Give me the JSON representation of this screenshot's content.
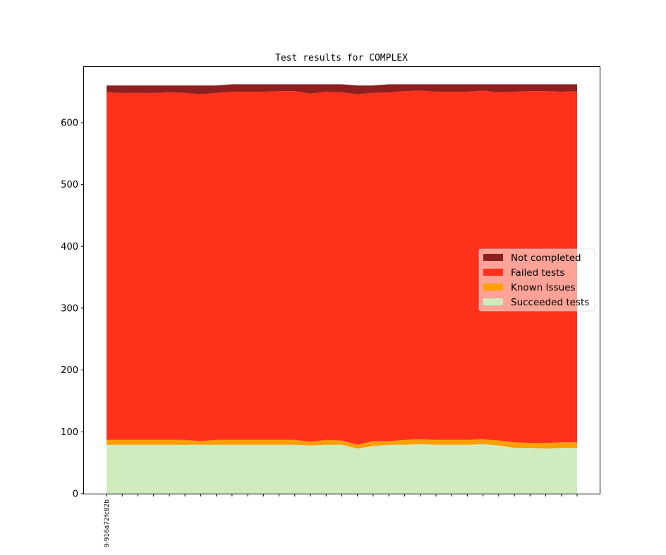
{
  "chart_data": {
    "type": "area",
    "stacked": true,
    "title": "Test results for COMPLEX",
    "xlabel": "",
    "ylabel": "",
    "ylim": [
      0,
      690
    ],
    "yticks": [
      0,
      100,
      200,
      300,
      400,
      500,
      600
    ],
    "x_tick_labels": [
      "9-916a72fc82b"
    ],
    "n_points": 31,
    "grid": false,
    "legend_position": "center-right",
    "series": [
      {
        "name": "Succeeded tests",
        "color": "#d0ecbf",
        "values": [
          79,
          79,
          79,
          79,
          79,
          79,
          79,
          79,
          79,
          79,
          79,
          79,
          79,
          78,
          79,
          79,
          73,
          77,
          79,
          79,
          80,
          79,
          79,
          79,
          80,
          78,
          74,
          74,
          73,
          74,
          74
        ]
      },
      {
        "name": "Known Issues",
        "color": "#ff9f00",
        "values": [
          8,
          8,
          8,
          8,
          8,
          8,
          6,
          8,
          8,
          8,
          8,
          8,
          8,
          6,
          8,
          7,
          6,
          8,
          6,
          8,
          8,
          8,
          8,
          8,
          8,
          8,
          9,
          8,
          9,
          9,
          9
        ]
      },
      {
        "name": "Failed tests",
        "color": "#ff311a",
        "values": [
          562,
          561,
          561,
          561,
          562,
          561,
          561,
          561,
          563,
          563,
          563,
          564,
          564,
          563,
          563,
          563,
          567,
          563,
          564,
          564,
          564,
          563,
          563,
          563,
          564,
          563,
          567,
          569,
          569,
          567,
          568
        ]
      },
      {
        "name": "Not completed",
        "color": "#8f1e1e",
        "values": [
          11,
          12,
          12,
          12,
          11,
          12,
          14,
          12,
          12,
          12,
          12,
          11,
          11,
          15,
          12,
          13,
          14,
          12,
          13,
          11,
          10,
          12,
          12,
          12,
          10,
          13,
          12,
          11,
          11,
          12,
          11
        ]
      }
    ]
  }
}
